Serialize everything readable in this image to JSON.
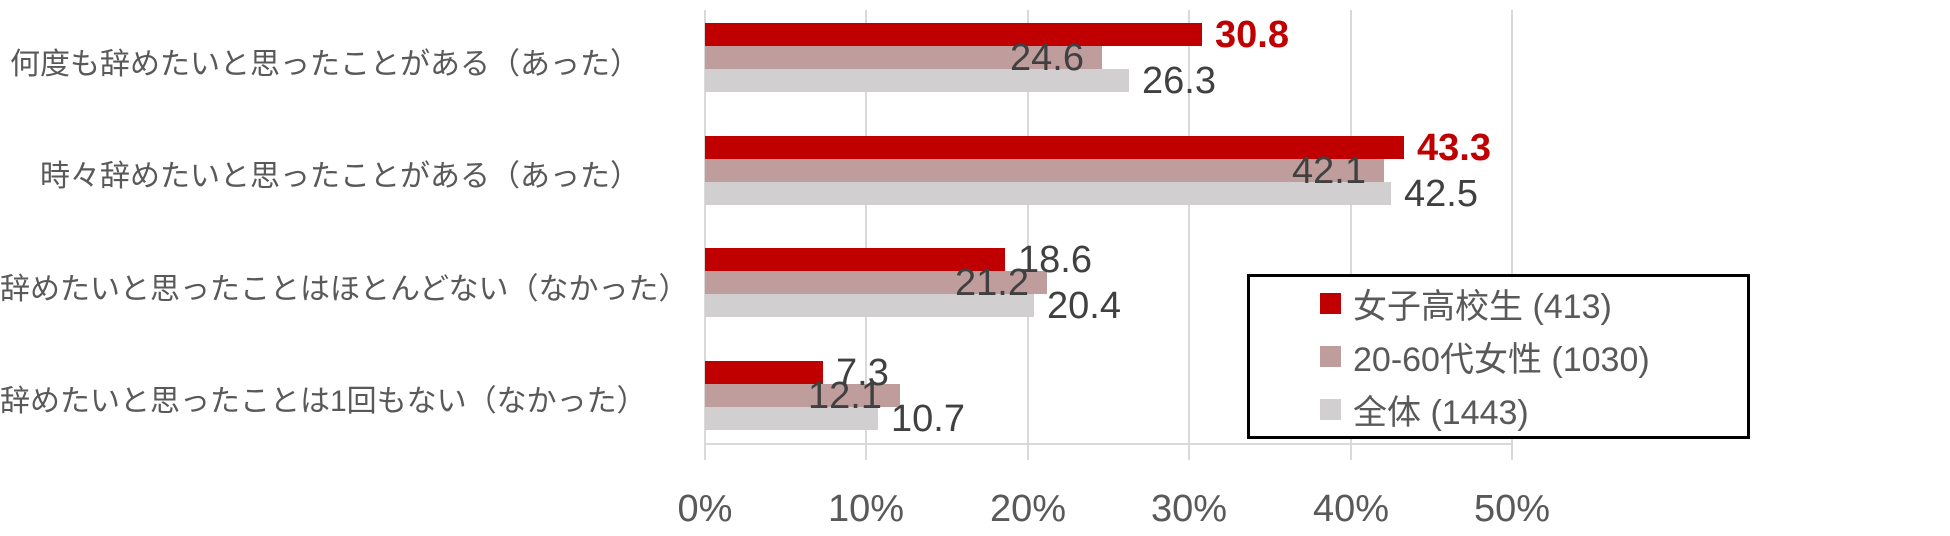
{
  "chart_data": {
    "type": "bar",
    "orientation": "horizontal",
    "title": "",
    "xlabel": "",
    "ylabel": "",
    "categories": [
      "何度も辞めたいと思ったことがある（あった）",
      "時々辞めたいと思ったことがある（あった）",
      "辞めたいと思ったことはほとんどない（なかった）",
      "辞めたいと思ったことは1回もない（なかった）"
    ],
    "series": [
      {
        "name": "女子高校生 (413)",
        "color": "#C00000",
        "values": [
          30.8,
          43.3,
          18.6,
          7.3
        ],
        "label_position": "outside",
        "emphasized": [
          true,
          true,
          false,
          false
        ]
      },
      {
        "name": "20-60代女性 (1030)",
        "color": "#BF9D9D",
        "values": [
          24.6,
          42.1,
          21.2,
          12.1
        ],
        "label_position": "inside-end",
        "emphasized": [
          false,
          false,
          false,
          false
        ]
      },
      {
        "name": "全体 (1443)",
        "color": "#D1CFCF",
        "values": [
          26.3,
          42.5,
          20.4,
          10.7
        ],
        "label_position": "outside",
        "emphasized": [
          false,
          false,
          false,
          false
        ]
      }
    ],
    "x_axis": {
      "tick_labels": [
        "0%",
        "10%",
        "20%",
        "30%",
        "40%",
        "50%"
      ],
      "tick_values": [
        0,
        10,
        20,
        30,
        40,
        50
      ],
      "min": 0,
      "max": 50,
      "grid": true
    },
    "legend": {
      "position": "middle-right",
      "border": true
    },
    "colors": {
      "value_text": "#404040",
      "emphasis_text": "#C00000",
      "axis_text": "#595959",
      "category_text": "#595959",
      "gridline": "#D9D9D9",
      "legend_border": "#000000",
      "background": "#FFFFFF"
    }
  }
}
